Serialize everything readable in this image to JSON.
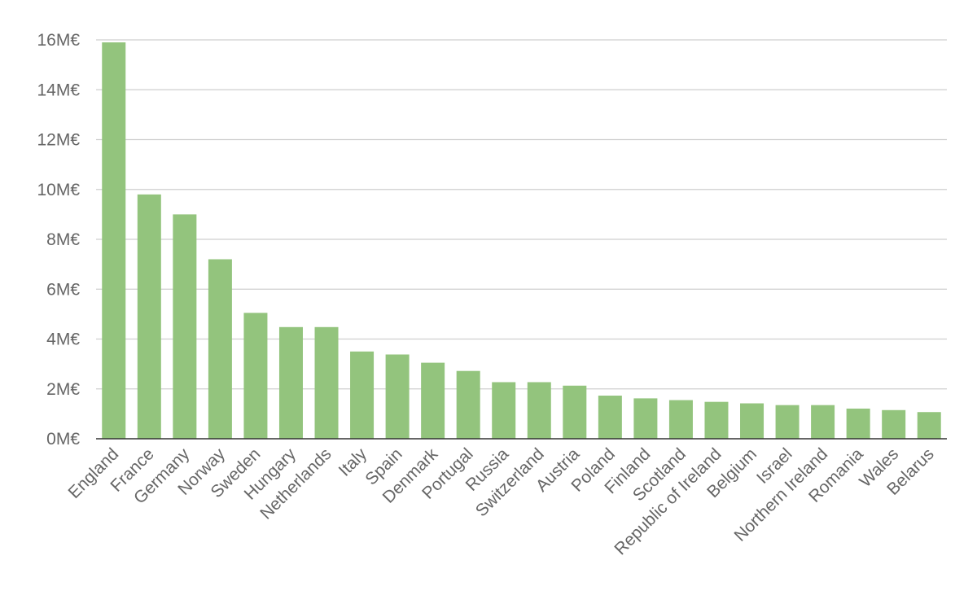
{
  "chart_data": {
    "type": "bar",
    "categories": [
      "England",
      "France",
      "Germany",
      "Norway",
      "Sweden",
      "Hungary",
      "Netherlands",
      "Italy",
      "Spain",
      "Denmark",
      "Portugal",
      "Russia",
      "Switzerland",
      "Austria",
      "Poland",
      "Finland",
      "Scotland",
      "Republic of Ireland",
      "Belgium",
      "Israel",
      "Northern Ireland",
      "Romania",
      "Wales",
      "Belarus"
    ],
    "values": [
      15.9,
      9.8,
      9.0,
      7.2,
      5.05,
      4.48,
      4.48,
      3.5,
      3.38,
      3.05,
      2.72,
      2.27,
      2.27,
      2.13,
      1.73,
      1.62,
      1.55,
      1.48,
      1.42,
      1.35,
      1.35,
      1.21,
      1.15,
      1.07
    ],
    "y_ticks": [
      "0M€",
      "2M€",
      "4M€",
      "6M€",
      "8M€",
      "10M€",
      "12M€",
      "14M€",
      "16M€"
    ],
    "ylim": [
      0,
      16
    ],
    "grid": true,
    "title": "",
    "xlabel": "",
    "ylabel": "",
    "bar_color": "#93c47d"
  }
}
